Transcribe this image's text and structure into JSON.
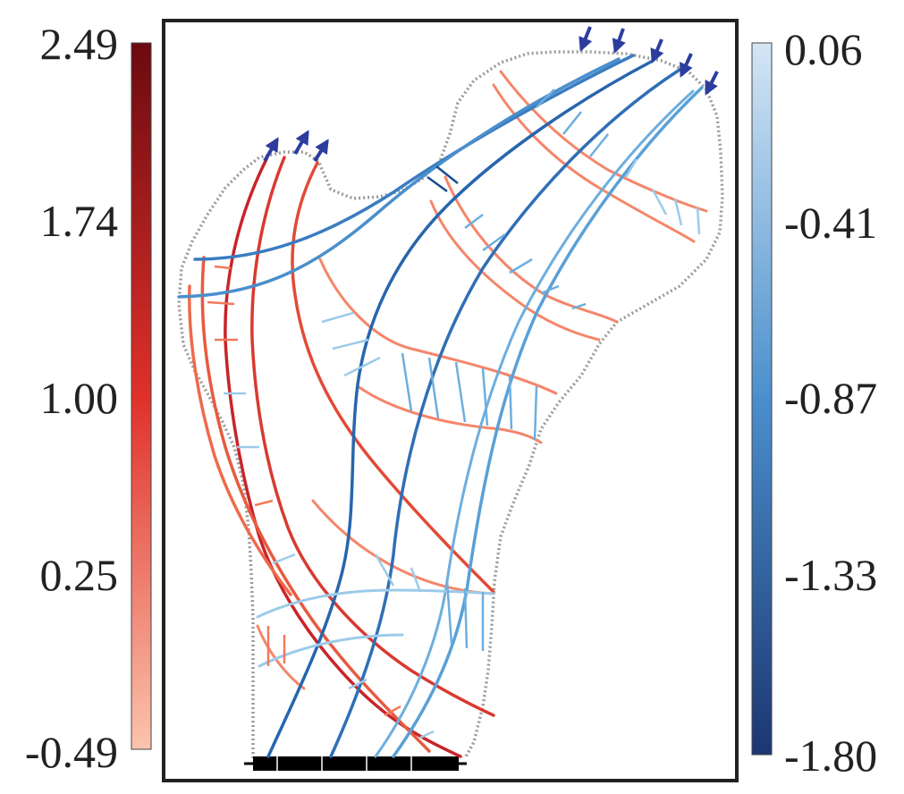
{
  "left_colorbar": {
    "ticks": [
      "2.49",
      "1.74",
      "1.00",
      "0.25",
      "-0.49"
    ],
    "color_top": "#6b0a10",
    "color_mid": "#e0302a",
    "color_bottom": "#fbc4ad"
  },
  "right_colorbar": {
    "ticks": [
      "0.06",
      "-0.41",
      "-0.87",
      "-1.33",
      "-1.80"
    ],
    "color_top": "#d4e6f5",
    "color_mid": "#4a8fcc",
    "color_bottom": "#1c3672"
  },
  "colors": {
    "tension": "#f07a5a",
    "tension_strong": "#c8242a",
    "compression": "#6eaede",
    "compression_strong": "#2766ad",
    "boundary": "#9a9a9a",
    "load_arrow": "#2c3d9e",
    "support": "#000000",
    "frame": "#222222"
  },
  "load_arrows": {
    "outward_count": 3,
    "inward_count": 5
  }
}
